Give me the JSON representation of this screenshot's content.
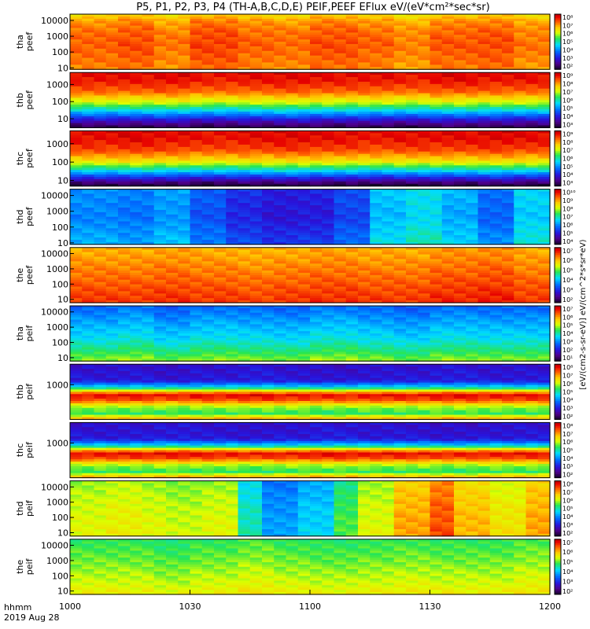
{
  "chart_data": {
    "type": "heatmap",
    "title": "P5, P1, P2, P3, P4 (TH-A,B,C,D,E) PEIF,PEEF EFlux eV/(eV*cm²*sec*sr)",
    "x_ticks": [
      "1000",
      "1030",
      "1100",
      "1130",
      "1200"
    ],
    "x_time_labels": {
      "hhmm": "hhmm",
      "date": "2019 Aug 28"
    },
    "colorbar_label": "[eV/(cm2-s-sr-eV)] eV/(cm^2*s*sr*eV)",
    "panels": [
      {
        "probe": "tha",
        "species": "peef",
        "ylabel": [
          "tha",
          "peef"
        ],
        "yticks": [
          "10000",
          "1000",
          "100",
          "10"
        ],
        "ylim": [
          8,
          25000
        ],
        "scale": "log",
        "colorbar_ticks": [
          "10⁸",
          "10⁷",
          "10⁶",
          "10⁵",
          "10⁴",
          "10³",
          "10²"
        ],
        "profile": [
          [
            0.0,
            0.72
          ],
          [
            0.12,
            0.8
          ],
          [
            0.3,
            0.84
          ],
          [
            0.55,
            0.86
          ],
          [
            0.8,
            0.84
          ],
          [
            1.0,
            0.82
          ]
        ],
        "time_variation": [
          0.0,
          0.02,
          -0.02,
          0.03,
          0.0,
          -0.01,
          0.02,
          0.0,
          -0.03,
          0.01,
          0.02,
          -0.02
        ]
      },
      {
        "probe": "thb",
        "species": "peef",
        "ylabel": [
          "thb",
          "peef"
        ],
        "yticks": [
          "1000",
          "100",
          "10"
        ],
        "ylim": [
          3,
          5000
        ],
        "scale": "log",
        "colorbar_ticks": [
          "10⁹",
          "10⁸",
          "10⁷",
          "10⁶",
          "10⁵",
          "10⁴",
          "10³"
        ],
        "profile": [
          [
            0.0,
            0.95
          ],
          [
            0.15,
            0.93
          ],
          [
            0.35,
            0.85
          ],
          [
            0.55,
            0.65
          ],
          [
            0.72,
            0.4
          ],
          [
            0.85,
            0.2
          ],
          [
            0.95,
            0.08
          ],
          [
            1.0,
            0.03
          ]
        ],
        "time_variation": [
          0.0,
          0.0,
          0.01,
          -0.01,
          0.0,
          0.01,
          0.0,
          0.0,
          -0.01,
          0.01,
          0.0,
          0.0
        ]
      },
      {
        "probe": "thc",
        "species": "peef",
        "ylabel": [
          "thc",
          "peef"
        ],
        "yticks": [
          "1000",
          "100",
          "10"
        ],
        "ylim": [
          5,
          5000
        ],
        "scale": "log",
        "colorbar_ticks": [
          "10⁹",
          "10⁸",
          "10⁷",
          "10⁶",
          "10⁵",
          "10⁴",
          "10³"
        ],
        "profile": [
          [
            0.0,
            0.95
          ],
          [
            0.15,
            0.94
          ],
          [
            0.35,
            0.88
          ],
          [
            0.55,
            0.72
          ],
          [
            0.72,
            0.45
          ],
          [
            0.85,
            0.22
          ],
          [
            0.95,
            0.06
          ],
          [
            1.0,
            0.02
          ]
        ],
        "time_variation": [
          0.0,
          0.01,
          0.0,
          -0.01,
          0.0,
          0.01,
          0.0,
          -0.01,
          0.0,
          0.0,
          0.01,
          0.0
        ]
      },
      {
        "probe": "thd",
        "species": "peef",
        "ylabel": [
          "thd",
          "peef"
        ],
        "yticks": [
          "10000",
          "1000",
          "100",
          "10"
        ],
        "ylim": [
          8,
          25000
        ],
        "scale": "log",
        "colorbar_ticks": [
          "10¹⁰",
          "10⁹",
          "10⁸",
          "10⁷",
          "10⁶",
          "10⁵",
          "10⁴"
        ],
        "profile": [
          [
            0.0,
            0.36
          ],
          [
            0.5,
            0.34
          ],
          [
            1.0,
            0.4
          ]
        ],
        "time_variation": [
          0.0,
          -0.02,
          0.02,
          -0.06,
          -0.12,
          -0.15,
          -0.14,
          -0.08,
          0.06,
          0.1,
          0.04,
          -0.04,
          0.08
        ]
      },
      {
        "probe": "the",
        "species": "peef",
        "ylabel": [
          "the",
          "peef"
        ],
        "yticks": [
          "10000",
          "1000",
          "100",
          "10"
        ],
        "ylim": [
          6,
          25000
        ],
        "scale": "log",
        "colorbar_ticks": [
          "10⁷",
          "10⁶",
          "10⁵",
          "10⁴",
          "10³",
          "10²"
        ],
        "profile": [
          [
            0.0,
            0.78
          ],
          [
            0.2,
            0.8
          ],
          [
            0.5,
            0.84
          ],
          [
            0.8,
            0.88
          ],
          [
            1.0,
            0.9
          ]
        ],
        "time_variation": [
          0.0,
          0.0,
          0.01,
          0.0,
          -0.01,
          0.0,
          0.01,
          0.0,
          0.0,
          0.02,
          0.03,
          0.0
        ]
      },
      {
        "probe": "tha",
        "species": "peif",
        "ylabel": [
          "tha",
          "peif"
        ],
        "yticks": [
          "10000",
          "1000",
          "100",
          "10"
        ],
        "ylim": [
          6,
          25000
        ],
        "scale": "log",
        "colorbar_ticks": [
          "10⁷",
          "10⁶",
          "10⁵",
          "10⁴",
          "10³",
          "10²",
          "10¹"
        ],
        "profile": [
          [
            0.0,
            0.3
          ],
          [
            0.3,
            0.38
          ],
          [
            0.6,
            0.45
          ],
          [
            0.85,
            0.55
          ],
          [
            1.0,
            0.62
          ]
        ],
        "time_variation": [
          0.0,
          0.02,
          -0.02,
          0.01,
          0.0,
          -0.01,
          0.02,
          0.0,
          -0.02,
          0.01,
          0.0,
          0.0
        ]
      },
      {
        "probe": "thb",
        "species": "peif",
        "ylabel": [
          "thb",
          "peif"
        ],
        "yticks": [
          "1000"
        ],
        "ylim": [
          30,
          8000
        ],
        "scale": "log",
        "colorbar_ticks": [
          "10⁸",
          "10⁷",
          "10⁶",
          "10⁵",
          "10⁴",
          "10³",
          "10²"
        ],
        "profile": [
          [
            0.0,
            0.18
          ],
          [
            0.3,
            0.2
          ],
          [
            0.42,
            0.45
          ],
          [
            0.55,
            0.95
          ],
          [
            0.65,
            0.88
          ],
          [
            0.78,
            0.62
          ],
          [
            0.9,
            0.55
          ],
          [
            1.0,
            0.82
          ]
        ],
        "time_variation": [
          0.0,
          0.0,
          -0.01,
          0.0,
          0.01,
          0.0,
          -0.01,
          0.0,
          0.0,
          0.01,
          0.0,
          0.0
        ]
      },
      {
        "probe": "thc",
        "species": "peif",
        "ylabel": [
          "thc",
          "peif"
        ],
        "yticks": [
          "1000"
        ],
        "ylim": [
          30,
          8000
        ],
        "scale": "log",
        "colorbar_ticks": [
          "10⁸",
          "10⁷",
          "10⁶",
          "10⁵",
          "10⁴",
          "10³",
          "10²"
        ],
        "profile": [
          [
            0.0,
            0.18
          ],
          [
            0.3,
            0.2
          ],
          [
            0.42,
            0.45
          ],
          [
            0.55,
            0.95
          ],
          [
            0.65,
            0.88
          ],
          [
            0.78,
            0.62
          ],
          [
            0.9,
            0.55
          ],
          [
            1.0,
            0.82
          ]
        ],
        "time_variation": [
          0.0,
          0.0,
          0.01,
          0.0,
          -0.01,
          0.0,
          0.01,
          0.0,
          0.0,
          -0.01,
          0.0,
          0.0
        ]
      },
      {
        "probe": "thd",
        "species": "peif",
        "ylabel": [
          "thd",
          "peif"
        ],
        "yticks": [
          "10000",
          "1000",
          "100",
          "10"
        ],
        "ylim": [
          6,
          25000
        ],
        "scale": "log",
        "colorbar_ticks": [
          "10⁸",
          "10⁷",
          "10⁶",
          "10⁵",
          "10⁴",
          "10³",
          "10²"
        ],
        "profile": [
          [
            0.0,
            0.62
          ],
          [
            0.5,
            0.66
          ],
          [
            1.0,
            0.68
          ]
        ],
        "time_variation": [
          0.0,
          0.02,
          0.0,
          -0.02,
          0.0,
          -0.18,
          -0.3,
          -0.24,
          -0.1,
          0.0,
          0.12,
          0.2,
          0.1,
          0.04,
          0.12
        ]
      },
      {
        "probe": "the",
        "species": "peif",
        "ylabel": [
          "the",
          "peif"
        ],
        "yticks": [
          "10000",
          "1000",
          "100",
          "10"
        ],
        "ylim": [
          6,
          25000
        ],
        "scale": "log",
        "colorbar_ticks": [
          "10⁷",
          "10⁶",
          "10⁵",
          "10⁴",
          "10³",
          "10²"
        ],
        "profile": [
          [
            0.0,
            0.55
          ],
          [
            0.4,
            0.6
          ],
          [
            0.8,
            0.66
          ],
          [
            1.0,
            0.7
          ]
        ],
        "time_variation": [
          0.0,
          0.0,
          -0.02,
          0.0,
          0.02,
          0.0,
          -0.01,
          0.0,
          0.01,
          0.0,
          0.0,
          0.02
        ]
      }
    ]
  }
}
